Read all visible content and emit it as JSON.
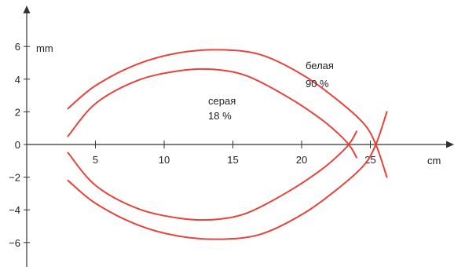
{
  "chart_data": {
    "type": "line",
    "title": "",
    "xlabel": "cm",
    "ylabel": "mm",
    "xlim": [
      0,
      28
    ],
    "ylim": [
      -7.5,
      8
    ],
    "x_ticks": [
      5,
      10,
      15,
      20,
      25
    ],
    "y_ticks": [
      -6,
      -4,
      -2,
      0,
      2,
      4,
      6
    ],
    "grid": false,
    "legend": "none",
    "colors": {
      "curve": "#e8423a",
      "axis": "#333333",
      "text": "#222222"
    },
    "series": [
      {
        "name": "белая 90 %",
        "branches": [
          {
            "x": [
              3.0,
              5.0,
              8.0,
              11.0,
              14.0,
              17.0,
              20.0,
              22.5,
              24.5,
              25.4,
              26.2
            ],
            "y": [
              2.2,
              3.6,
              4.9,
              5.6,
              5.8,
              5.5,
              4.3,
              2.8,
              1.3,
              0.0,
              -2.0
            ]
          },
          {
            "x": [
              3.0,
              5.0,
              8.0,
              11.0,
              14.0,
              17.0,
              20.0,
              22.5,
              24.5,
              25.4,
              26.2
            ],
            "y": [
              -2.2,
              -3.6,
              -4.9,
              -5.6,
              -5.8,
              -5.5,
              -4.3,
              -2.8,
              -1.3,
              0.0,
              2.0
            ]
          }
        ],
        "label_lines": [
          "белая",
          "90 %"
        ]
      },
      {
        "name": "серая 18 %",
        "branches": [
          {
            "x": [
              3.0,
              5.0,
              8.0,
              11.0,
              13.5,
              16.0,
              19.0,
              21.5,
              23.0,
              23.6,
              24.0
            ],
            "y": [
              0.5,
              2.5,
              3.9,
              4.5,
              4.6,
              4.2,
              2.9,
              1.5,
              0.4,
              -0.2,
              -0.8
            ]
          },
          {
            "x": [
              3.0,
              5.0,
              8.0,
              11.0,
              13.5,
              16.0,
              19.0,
              21.5,
              23.0,
              23.6,
              24.0
            ],
            "y": [
              -0.5,
              -2.5,
              -3.9,
              -4.5,
              -4.6,
              -4.2,
              -2.9,
              -1.5,
              -0.4,
              0.2,
              0.8
            ]
          }
        ],
        "label_lines": [
          "серая",
          "18 %"
        ]
      }
    ]
  }
}
